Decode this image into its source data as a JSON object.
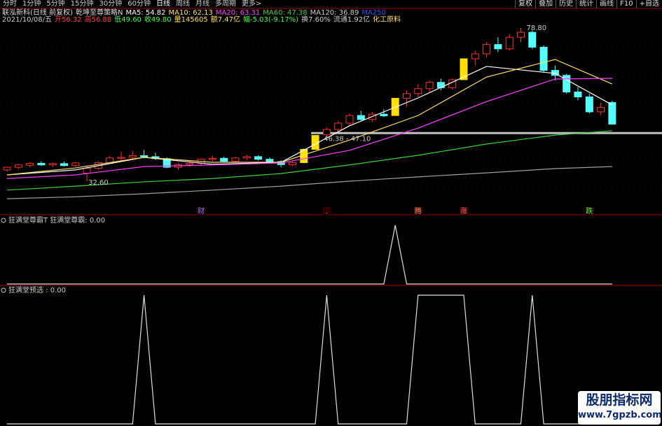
{
  "toolbar": {
    "left": [
      "分时",
      "1分钟",
      "5分钟",
      "15分钟",
      "30分钟",
      "60分钟",
      "日线",
      "周线",
      "月线",
      "多周期",
      "更多>"
    ],
    "right": [
      "复权",
      "叠加",
      "历史",
      "统计",
      "画线",
      "F10",
      "+自选"
    ]
  },
  "info": {
    "stock": "联泓新科(日线 前复权)",
    "strategy": "乾坤至尊策略N",
    "ma_labels": [
      "MA5: 54.82",
      "MA10: 62.13",
      "MA20: 63.31",
      "MA60: 47.38",
      "MA120: 36.89",
      "MA250"
    ],
    "line2": [
      "2021/10/08/五",
      "开56.32",
      "高56.88",
      "低49.60",
      "收49.80",
      "量145605",
      "额7.47亿",
      "幅-5.03(-9.17%)",
      "换7.60%",
      "流通1.92亿",
      "化工原料"
    ]
  },
  "main": {
    "ylim": [
      22.9,
      80.9
    ],
    "limit_up_color": "#ffe000",
    "up_color": "#ff3030",
    "down_color": "#54ffff",
    "open": [
      36,
      36.8,
      37.4,
      38,
      37.5,
      37.9,
      37.3,
      35,
      36.5,
      38.2,
      39.5,
      39.8,
      40.3,
      40,
      39.4,
      36.8,
      37.6,
      38,
      39.2,
      39.5,
      38.6,
      39.6,
      40,
      39.2,
      38.5,
      37.6,
      38.2,
      42.2,
      46.6,
      48.2,
      50.1,
      52.4,
      51.2,
      52.8,
      52.4,
      57.6,
      59,
      60.5,
      62.4,
      60.8,
      63.2,
      69.5,
      71,
      73.8,
      72.5,
      76,
      77.5,
      73,
      66,
      64.5,
      59.5,
      58,
      53.5,
      56.32
    ],
    "high": [
      37,
      37.8,
      38.3,
      38.6,
      38.2,
      38.5,
      38.4,
      37,
      38.5,
      40.2,
      41.5,
      41.8,
      42,
      41.2,
      39.8,
      38,
      38.5,
      39.5,
      40.2,
      40,
      40,
      40.5,
      40.4,
      39.8,
      38.9,
      38.6,
      42.5,
      46.4,
      48.8,
      50.8,
      53,
      53.8,
      53.5,
      54.3,
      57.6,
      60,
      62,
      63,
      63.5,
      63.6,
      69.5,
      72,
      74.5,
      76,
      77,
      78.8,
      78,
      73.5,
      67.5,
      65,
      61,
      59,
      56.2,
      56.88
    ],
    "low": [
      35.5,
      36.2,
      36.8,
      37.2,
      36.9,
      37,
      36.9,
      32.6,
      36,
      37.8,
      38.8,
      39.1,
      39.5,
      39,
      36.5,
      36,
      37,
      37.5,
      38.6,
      38.2,
      38.3,
      39,
      38.8,
      38.2,
      36.8,
      37.2,
      38,
      42.2,
      46,
      47.6,
      49.5,
      50.9,
      50.5,
      51.9,
      52.4,
      55,
      58,
      59.5,
      60,
      60.2,
      63.2,
      67.5,
      70,
      71.5,
      72,
      74.5,
      72.5,
      65.5,
      63,
      59,
      57,
      53,
      52.5,
      49.6
    ],
    "close": [
      36.8,
      37.5,
      38,
      37.5,
      37.9,
      37.3,
      38.1,
      36.5,
      38.2,
      39.6,
      39.8,
      40.3,
      40,
      39.4,
      36.8,
      37.6,
      38,
      39.2,
      39.5,
      38.6,
      39.6,
      40,
      39.2,
      38.5,
      37.6,
      38.2,
      42.2,
      46.4,
      48.2,
      50.1,
      52.4,
      51.2,
      52.8,
      52.3,
      57.6,
      59,
      60.5,
      62.4,
      60.8,
      63.2,
      69.5,
      71,
      73.8,
      72.5,
      76,
      77.5,
      73,
      66,
      64.5,
      59.5,
      58,
      53.5,
      54.83,
      49.8
    ],
    "ma_x": [
      0,
      6,
      12,
      18,
      24,
      30,
      36,
      42,
      48,
      53
    ],
    "ma": [
      {
        "color": "#ffffff",
        "values": [
          34.5,
          36,
          39.8,
          37.7,
          38.3,
          49.3,
          57.7,
          67.2,
          65.1,
          55.6
        ]
      },
      {
        "color": "#ffe066",
        "values": [
          34.5,
          36.6,
          39.8,
          38.3,
          38.3,
          45,
          52.4,
          64,
          69.3,
          61.9
        ]
      },
      {
        "color": "#ff40ff",
        "values": [
          33.4,
          34.5,
          37,
          37.5,
          38.1,
          41.9,
          48.6,
          56.6,
          63.4,
          63.6
        ]
      },
      {
        "color": "#40d040",
        "values": [
          29.9,
          31.1,
          32.4,
          33.4,
          34.9,
          37.5,
          40.4,
          43.8,
          46.5,
          47.8
        ]
      },
      {
        "color": "#a0a0a0",
        "values": [
          27.3,
          27.9,
          28.8,
          29.9,
          31.1,
          32.6,
          33.9,
          35.1,
          36.4,
          37
        ]
      }
    ],
    "support": 47.1,
    "high_label": "78.80",
    "low_label": "32.60",
    "range_label": "46.38 - 47.10",
    "signals": [
      {
        "i": 17,
        "text": "财"
      },
      {
        "i": 28,
        "text": "."
      },
      {
        "i": 36,
        "text": "腾"
      },
      {
        "i": 40,
        "text": "涨"
      },
      {
        "i": 51,
        "text": "跌"
      }
    ]
  },
  "panel2": {
    "title": "狂满堂尊霸T 狂满堂尊霸: 0.00",
    "ylim": [
      0,
      1
    ],
    "values": [
      0,
      0,
      0,
      0,
      0,
      0,
      0,
      0,
      0,
      0,
      0,
      0,
      0,
      0,
      0,
      0,
      0,
      0,
      0,
      0,
      0,
      0,
      0,
      0,
      0,
      0,
      0,
      0,
      0,
      0,
      0,
      0,
      0,
      0,
      1,
      0,
      0,
      0,
      0,
      0,
      0,
      0,
      0,
      0,
      0,
      0,
      0,
      0,
      0,
      0,
      0,
      0,
      0,
      0
    ]
  },
  "panel3": {
    "title": "狂满堂预选 : 0.00",
    "ylim": [
      0,
      1
    ],
    "values": [
      0,
      0,
      0,
      0,
      0,
      0,
      0,
      0,
      0,
      0,
      0,
      0,
      1,
      0,
      0,
      0,
      0,
      0,
      0,
      0,
      0,
      0,
      0,
      0,
      0,
      0,
      0,
      0,
      1,
      0,
      0,
      0,
      0,
      0,
      0,
      0,
      1,
      1,
      1,
      1,
      1,
      0,
      0,
      0,
      0,
      0,
      1,
      0,
      0,
      0,
      0,
      0,
      0,
      0
    ]
  },
  "watermark": {
    "title": "股朋指标网",
    "url": "www.7gpzb.com"
  }
}
